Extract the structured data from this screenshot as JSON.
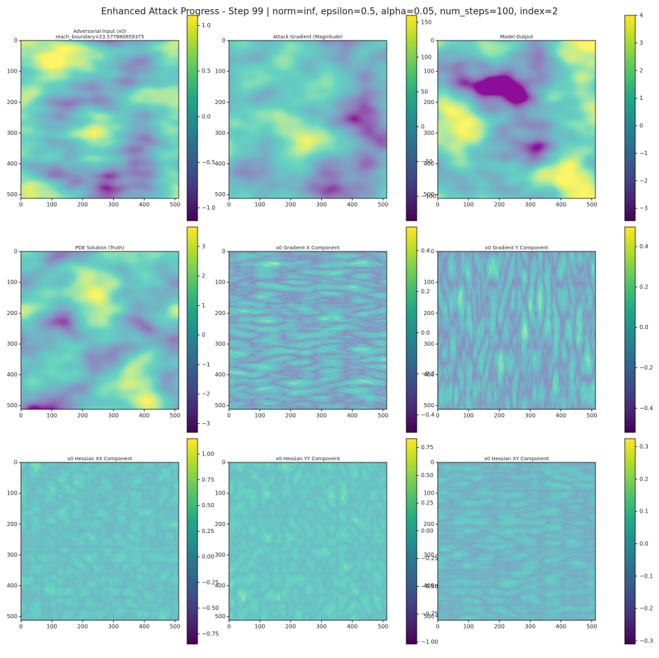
{
  "figure_title": "Enhanced Attack Progress - Step 99 | norm=inf, epsilon=0.5, alpha=0.05, num_steps=100, index=2",
  "chart_data": [
    {
      "type": "heatmap",
      "title": "Adversarial Input (x0)",
      "subtitle": "reach_boundary=23.577880859375",
      "colormap": "viridis",
      "xlim": [
        0,
        512
      ],
      "ylim": [
        512,
        0
      ],
      "xticks": [
        0,
        100,
        200,
        300,
        400,
        500
      ],
      "yticks": [
        0,
        100,
        200,
        300,
        400,
        500
      ],
      "clim": [
        -1.14,
        1.11
      ],
      "cticks": [
        {
          "value": -1.0,
          "label": "−1.0"
        },
        {
          "value": -0.5,
          "label": "−0.5"
        },
        {
          "value": 0.0,
          "label": "0.0"
        },
        {
          "value": 0.5,
          "label": "0.5"
        },
        {
          "value": 1.0,
          "label": "1.0"
        }
      ]
    },
    {
      "type": "heatmap",
      "title": "Attack Gradient (Magnitude)",
      "colormap": "viridis",
      "xlim": [
        0,
        512
      ],
      "ylim": [
        512,
        0
      ],
      "xticks": [
        0,
        100,
        200,
        300,
        400,
        500
      ],
      "yticks": [
        0,
        100,
        200,
        300,
        400,
        500
      ],
      "clim": [
        -135,
        160
      ],
      "cticks": [
        {
          "value": -100,
          "label": "−100"
        },
        {
          "value": -50,
          "label": "−50"
        },
        0,
        50,
        100,
        150
      ]
    },
    {
      "type": "heatmap",
      "title": "Model Output",
      "colormap": "viridis",
      "xlim": [
        0,
        512
      ],
      "ylim": [
        512,
        0
      ],
      "xticks": [
        0,
        100,
        200,
        300,
        400,
        500
      ],
      "yticks": [
        0,
        100,
        200,
        300,
        400,
        500
      ],
      "clim": [
        -3.45,
        4.0
      ],
      "cticks": [
        {
          "value": -3,
          "label": "−3"
        },
        {
          "value": -2,
          "label": "−2"
        },
        {
          "value": -1,
          "label": "−1"
        },
        0,
        1,
        2,
        3,
        4
      ]
    },
    {
      "type": "heatmap",
      "title": "PDE Solution (Truth)",
      "colormap": "viridis",
      "xlim": [
        0,
        512
      ],
      "ylim": [
        512,
        0
      ],
      "xticks": [
        0,
        100,
        200,
        300,
        400,
        500
      ],
      "yticks": [
        0,
        100,
        200,
        300,
        400,
        500
      ],
      "clim": [
        -3.3,
        3.66
      ],
      "cticks": [
        {
          "value": -3,
          "label": "−3"
        },
        {
          "value": -2,
          "label": "−2"
        },
        {
          "value": -1,
          "label": "−1"
        },
        0,
        1,
        2,
        3
      ]
    },
    {
      "type": "heatmap",
      "title": "x0 Gradient X Component",
      "colormap": "viridis",
      "xlim": [
        0,
        512
      ],
      "ylim": [
        512,
        0
      ],
      "xticks": [
        0,
        100,
        200,
        300,
        400,
        500
      ],
      "yticks": [
        0,
        100,
        200,
        300,
        400,
        500
      ],
      "clim": [
        -0.485,
        0.515
      ],
      "cticks": [
        {
          "value": -0.4,
          "label": "−0.4"
        },
        {
          "value": -0.2,
          "label": "−0.2"
        },
        {
          "value": 0.0,
          "label": "0.0"
        },
        {
          "value": 0.2,
          "label": "0.2"
        },
        {
          "value": 0.4,
          "label": "0.4"
        }
      ]
    },
    {
      "type": "heatmap",
      "title": "x0 Gradient Y Component",
      "colormap": "viridis",
      "xlim": [
        0,
        512
      ],
      "ylim": [
        512,
        0
      ],
      "xticks": [
        0,
        100,
        200,
        300,
        400,
        500
      ],
      "yticks": [
        0,
        100,
        200,
        300,
        400,
        500
      ],
      "clim": [
        -0.52,
        0.497
      ],
      "cticks": [
        {
          "value": -0.4,
          "label": "−0.4"
        },
        {
          "value": -0.2,
          "label": "−0.2"
        },
        {
          "value": 0.0,
          "label": "0.0"
        },
        {
          "value": 0.2,
          "label": "0.2"
        },
        {
          "value": 0.4,
          "label": "0.4"
        }
      ]
    },
    {
      "type": "heatmap",
      "title": "x0 Hessian XX Component",
      "colormap": "viridis",
      "xlim": [
        0,
        512
      ],
      "ylim": [
        512,
        0
      ],
      "xticks": [
        0,
        100,
        200,
        300,
        400,
        500
      ],
      "yticks": [
        0,
        100,
        200,
        300,
        400,
        500
      ],
      "clim": [
        -0.85,
        1.15
      ],
      "cticks": [
        {
          "value": -0.75,
          "label": "−0.75"
        },
        {
          "value": -0.5,
          "label": "−0.50"
        },
        {
          "value": -0.25,
          "label": "−0.25"
        },
        {
          "value": 0.0,
          "label": "0.00"
        },
        {
          "value": 0.25,
          "label": "0.25"
        },
        {
          "value": 0.5,
          "label": "0.50"
        },
        {
          "value": 0.75,
          "label": "0.75"
        },
        {
          "value": 1.0,
          "label": "1.00"
        }
      ]
    },
    {
      "type": "heatmap",
      "title": "x0 Hessian YY Component",
      "colormap": "viridis",
      "xlim": [
        0,
        512
      ],
      "ylim": [
        512,
        0
      ],
      "xticks": [
        0,
        100,
        200,
        300,
        400,
        500
      ],
      "yticks": [
        0,
        100,
        200,
        300,
        400,
        500
      ],
      "clim": [
        -1.02,
        0.83
      ],
      "cticks": [
        {
          "value": -1.0,
          "label": "−1.00"
        },
        {
          "value": -0.75,
          "label": "−0.75"
        },
        {
          "value": -0.5,
          "label": "−0.50"
        },
        {
          "value": -0.25,
          "label": "−0.25"
        },
        {
          "value": 0.0,
          "label": "0.00"
        },
        {
          "value": 0.25,
          "label": "0.25"
        },
        {
          "value": 0.5,
          "label": "0.50"
        },
        {
          "value": 0.75,
          "label": "0.75"
        }
      ]
    },
    {
      "type": "heatmap",
      "title": "x0 Hessian XY Component",
      "colormap": "viridis",
      "xlim": [
        0,
        512
      ],
      "ylim": [
        512,
        0
      ],
      "xticks": [
        0,
        100,
        200,
        300,
        400,
        500
      ],
      "yticks": [
        0,
        100,
        200,
        300,
        400,
        500
      ],
      "clim": [
        -0.31,
        0.325
      ],
      "cticks": [
        {
          "value": -0.3,
          "label": "−0.3"
        },
        {
          "value": -0.2,
          "label": "−0.2"
        },
        {
          "value": -0.1,
          "label": "−0.1"
        },
        {
          "value": 0.0,
          "label": "0.0"
        },
        {
          "value": 0.1,
          "label": "0.1"
        },
        {
          "value": 0.2,
          "label": "0.2"
        },
        {
          "value": 0.3,
          "label": "0.3"
        }
      ]
    }
  ]
}
